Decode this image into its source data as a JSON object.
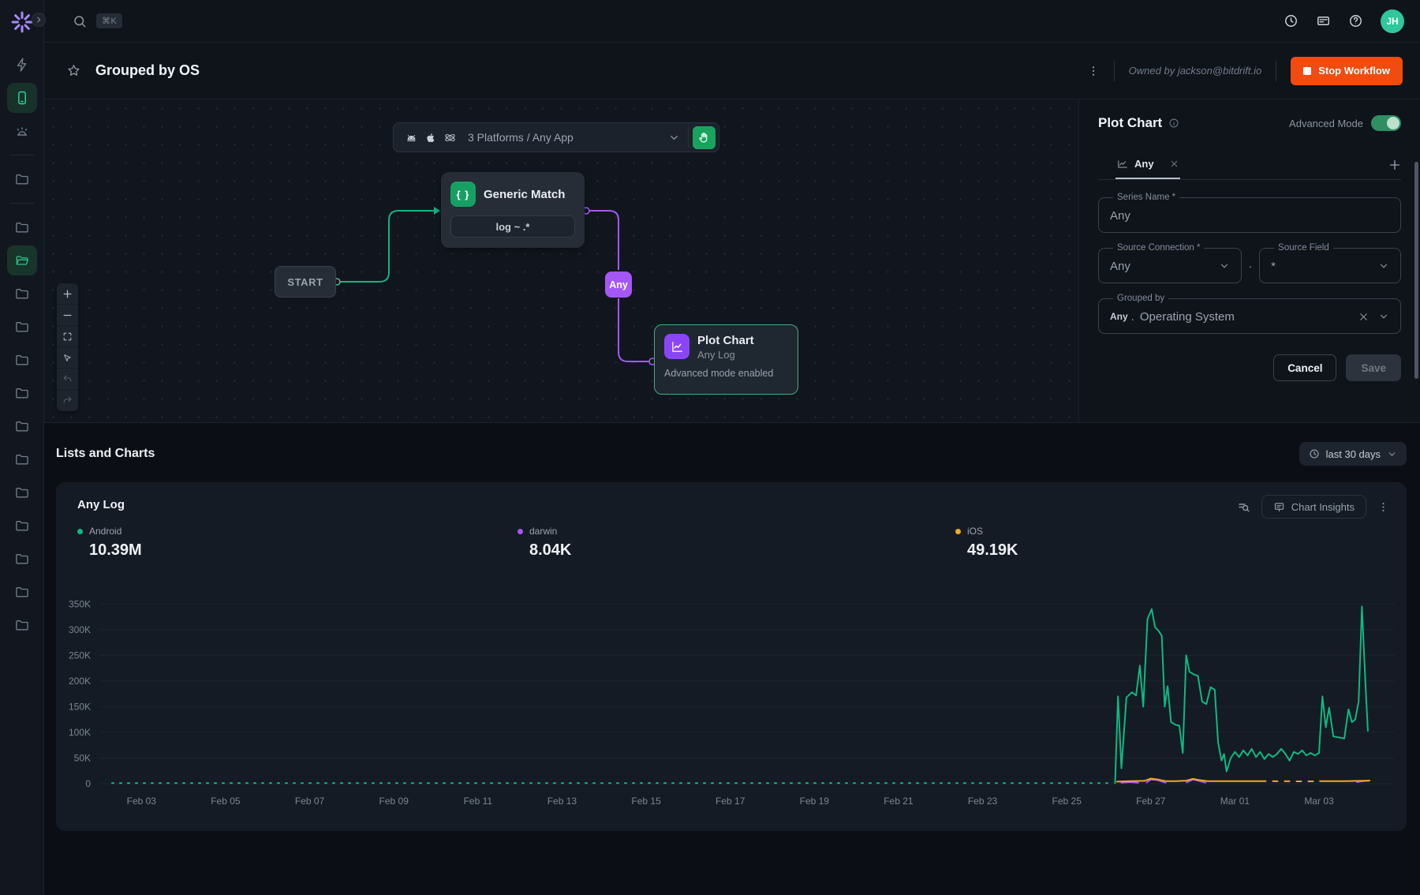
{
  "topbar": {
    "shortcut": "⌘K",
    "avatar_initials": "JH"
  },
  "header": {
    "title": "Grouped by OS",
    "owned_by": "Owned by jackson@bitdrift.io",
    "stop_button": "Stop Workflow"
  },
  "canvas": {
    "platform_selector": {
      "label": "3 Platforms / Any App"
    },
    "nodes": {
      "start": {
        "label": "START"
      },
      "generic_match": {
        "icon_glyph": "{ }",
        "title": "Generic Match",
        "rule": "log ~ .*"
      },
      "any_badge": {
        "label": "Any"
      },
      "plot_chart": {
        "title": "Plot Chart",
        "subtitle": "Any Log",
        "footer": "Advanced mode enabled"
      }
    }
  },
  "panel": {
    "title": "Plot Chart",
    "advanced_mode_label": "Advanced Mode",
    "tab": {
      "label": "Any"
    },
    "fields": {
      "series_name": {
        "label": "Series Name *",
        "value": "Any"
      },
      "source_connection": {
        "label": "Source Connection *",
        "value": "Any"
      },
      "separator": ".",
      "source_field": {
        "label": "Source Field",
        "value": "*"
      },
      "grouped_by": {
        "label": "Grouped by",
        "prefix": "Any",
        "separator": ".",
        "value": "Operating System"
      }
    },
    "buttons": {
      "cancel": "Cancel",
      "save": "Save"
    }
  },
  "section": {
    "title": "Lists and Charts",
    "time_range": "last 30 days",
    "card": {
      "title": "Any Log",
      "insights_button": "Chart Insights",
      "legend": [
        {
          "name": "Android",
          "value": "10.39M",
          "color": "#10b981"
        },
        {
          "name": "darwin",
          "value": "8.04K",
          "color": "#a855f7"
        },
        {
          "name": "iOS",
          "value": "49.19K",
          "color": "#f0a929"
        }
      ]
    }
  },
  "icons": [
    "logo-burst",
    "collapse-chevron",
    "search",
    "clock",
    "changelog-card",
    "help",
    "zap",
    "mobile-device",
    "alarm",
    "folder",
    "folder-open",
    "star",
    "kebab-menu",
    "stop-square",
    "android",
    "apple",
    "electron-atom",
    "chevron-down",
    "hand-pause",
    "zoom-in",
    "zoom-out",
    "fit-view",
    "cursor",
    "undo",
    "redo",
    "curly-braces",
    "chart-line",
    "info",
    "close-x",
    "plus",
    "list-search",
    "chart-insights-board"
  ],
  "chart_data": {
    "type": "line",
    "title": "Any Log",
    "xlabel": "",
    "ylabel": "",
    "x_unit": "days since Feb 01",
    "x_range": [
      1.0,
      31.8
    ],
    "ylim": [
      0,
      375000
    ],
    "grid": "horizontal",
    "legend_position": "top",
    "xticks": [
      {
        "day": 2,
        "label": "Feb 03"
      },
      {
        "day": 4,
        "label": "Feb 05"
      },
      {
        "day": 6,
        "label": "Feb 07"
      },
      {
        "day": 8,
        "label": "Feb 09"
      },
      {
        "day": 10,
        "label": "Feb 11"
      },
      {
        "day": 12,
        "label": "Feb 13"
      },
      {
        "day": 14,
        "label": "Feb 15"
      },
      {
        "day": 16,
        "label": "Feb 17"
      },
      {
        "day": 18,
        "label": "Feb 19"
      },
      {
        "day": 20,
        "label": "Feb 21"
      },
      {
        "day": 22,
        "label": "Feb 23"
      },
      {
        "day": 24,
        "label": "Feb 25"
      },
      {
        "day": 26,
        "label": "Feb 27"
      },
      {
        "day": 28,
        "label": "Mar 01"
      },
      {
        "day": 30,
        "label": "Mar 03"
      }
    ],
    "yticks": [
      {
        "value": 0,
        "label": "0"
      },
      {
        "value": 50000,
        "label": "50K"
      },
      {
        "value": 100000,
        "label": "100K"
      },
      {
        "value": 150000,
        "label": "150K"
      },
      {
        "value": 200000,
        "label": "200K"
      },
      {
        "value": 250000,
        "label": "250K"
      },
      {
        "value": 300000,
        "label": "300K"
      },
      {
        "value": 350000,
        "label": "350K"
      }
    ],
    "series": [
      {
        "name": "darwin",
        "color": "#a855f7",
        "total_label": "8.04K",
        "segments": [
          {
            "style": "solid",
            "points": [
              [
                25.3,
                2000
              ],
              [
                25.5,
                3000
              ],
              [
                25.7,
                2000
              ]
            ]
          },
          {
            "style": "solid",
            "points": [
              [
                25.9,
                2500
              ],
              [
                26.0,
                8000
              ],
              [
                26.15,
                7000
              ],
              [
                26.35,
                2000
              ]
            ]
          },
          {
            "style": "solid",
            "points": [
              [
                26.85,
                2500
              ],
              [
                27.0,
                8000
              ],
              [
                27.12,
                6000
              ],
              [
                27.3,
                2000
              ]
            ]
          },
          {
            "style": "solid",
            "points": [
              [
                30.9,
                3000
              ],
              [
                31.05,
                5000
              ],
              [
                31.18,
                6000
              ]
            ]
          }
        ]
      },
      {
        "name": "iOS",
        "color": "#f0a929",
        "total_label": "49.19K",
        "segments": [
          {
            "style": "solid",
            "points": [
              [
                25.2,
                4000
              ],
              [
                25.5,
                5000
              ],
              [
                25.85,
                5500
              ],
              [
                26.0,
                10000
              ],
              [
                26.18,
                8000
              ],
              [
                26.35,
                5000
              ],
              [
                26.6,
                5000
              ],
              [
                26.85,
                6000
              ],
              [
                27.0,
                9500
              ],
              [
                27.15,
                7000
              ],
              [
                27.35,
                5000
              ],
              [
                27.7,
                5000
              ],
              [
                28.1,
                5000
              ],
              [
                28.5,
                5000
              ],
              [
                28.62,
                5000
              ]
            ]
          },
          {
            "style": "dashed",
            "dash": "6 9",
            "points": [
              [
                28.62,
                5000
              ],
              [
                30.02,
                4500
              ]
            ]
          },
          {
            "style": "solid",
            "points": [
              [
                30.02,
                5000
              ],
              [
                30.6,
                5000
              ],
              [
                31.2,
                6000
              ]
            ]
          }
        ]
      },
      {
        "name": "Android",
        "color": "#10b981",
        "total_label": "10.39M",
        "segments": [
          {
            "style": "dashed",
            "dash": "2 8",
            "points": [
              [
                1.3,
                1000
              ],
              [
                25.1,
                1000
              ]
            ]
          },
          {
            "style": "solid",
            "points": [
              [
                25.15,
                1000
              ],
              [
                25.22,
                170000
              ],
              [
                25.3,
                30000
              ],
              [
                25.42,
                168000
              ],
              [
                25.55,
                178000
              ],
              [
                25.65,
                172000
              ],
              [
                25.74,
                230000
              ],
              [
                25.82,
                150000
              ],
              [
                25.92,
                320000
              ],
              [
                26.02,
                340000
              ],
              [
                26.1,
                305000
              ],
              [
                26.18,
                298000
              ],
              [
                26.26,
                288000
              ],
              [
                26.33,
                150000
              ],
              [
                26.4,
                190000
              ],
              [
                26.48,
                120000
              ],
              [
                26.58,
                115000
              ],
              [
                26.68,
                113000
              ],
              [
                26.76,
                60000
              ],
              [
                26.84,
                250000
              ],
              [
                26.92,
                218000
              ],
              [
                27.02,
                213000
              ],
              [
                27.12,
                210000
              ],
              [
                27.22,
                160000
              ],
              [
                27.32,
                155000
              ],
              [
                27.42,
                188000
              ],
              [
                27.52,
                183000
              ],
              [
                27.6,
                80000
              ],
              [
                27.68,
                45000
              ],
              [
                27.74,
                58000
              ],
              [
                27.8,
                24000
              ],
              [
                27.9,
                50000
              ],
              [
                28.0,
                62000
              ],
              [
                28.1,
                52000
              ],
              [
                28.2,
                65000
              ],
              [
                28.3,
                55000
              ],
              [
                28.4,
                68000
              ],
              [
                28.5,
                52000
              ],
              [
                28.6,
                62000
              ],
              [
                28.7,
                48000
              ],
              [
                28.8,
                58000
              ],
              [
                28.9,
                52000
              ],
              [
                29.0,
                58000
              ],
              [
                29.1,
                68000
              ],
              [
                29.2,
                58000
              ],
              [
                29.3,
                45000
              ],
              [
                29.4,
                62000
              ],
              [
                29.5,
                58000
              ],
              [
                29.6,
                65000
              ],
              [
                29.7,
                55000
              ],
              [
                29.8,
                60000
              ],
              [
                29.9,
                55000
              ],
              [
                30.0,
                60000
              ],
              [
                30.08,
                170000
              ],
              [
                30.16,
                110000
              ],
              [
                30.24,
                148000
              ],
              [
                30.34,
                92000
              ],
              [
                30.48,
                90000
              ],
              [
                30.6,
                88000
              ],
              [
                30.7,
                145000
              ],
              [
                30.78,
                120000
              ],
              [
                30.86,
                125000
              ],
              [
                30.94,
                160000
              ],
              [
                31.02,
                345000
              ],
              [
                31.1,
                200000
              ],
              [
                31.16,
                103000
              ]
            ]
          }
        ]
      }
    ]
  }
}
